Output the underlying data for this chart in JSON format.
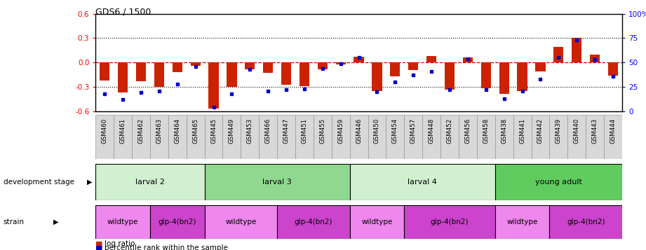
{
  "title": "GDS6 / 1500",
  "samples": [
    "GSM460",
    "GSM461",
    "GSM462",
    "GSM463",
    "GSM464",
    "GSM465",
    "GSM445",
    "GSM449",
    "GSM453",
    "GSM466",
    "GSM447",
    "GSM451",
    "GSM455",
    "GSM459",
    "GSM446",
    "GSM450",
    "GSM454",
    "GSM457",
    "GSM448",
    "GSM452",
    "GSM456",
    "GSM458",
    "GSM438",
    "GSM441",
    "GSM442",
    "GSM439",
    "GSM440",
    "GSM443",
    "GSM444"
  ],
  "log_ratio": [
    -0.22,
    -0.37,
    -0.23,
    -0.3,
    -0.12,
    -0.04,
    -0.57,
    -0.3,
    -0.08,
    -0.13,
    -0.27,
    -0.29,
    -0.08,
    -0.02,
    0.07,
    -0.35,
    -0.17,
    -0.09,
    0.08,
    -0.33,
    0.06,
    -0.32,
    -0.39,
    -0.35,
    -0.11,
    0.19,
    0.3,
    0.1,
    -0.16
  ],
  "percentile": [
    18,
    12,
    19,
    21,
    28,
    46,
    4,
    18,
    43,
    21,
    22,
    23,
    44,
    49,
    55,
    20,
    30,
    37,
    41,
    22,
    54,
    22,
    13,
    21,
    33,
    55,
    73,
    53,
    36
  ],
  "development_stages": [
    {
      "label": "larval 2",
      "start": 0,
      "end": 6,
      "color": "#d0f0d0"
    },
    {
      "label": "larval 3",
      "start": 6,
      "end": 14,
      "color": "#90d890"
    },
    {
      "label": "larval 4",
      "start": 14,
      "end": 22,
      "color": "#d0f0d0"
    },
    {
      "label": "young adult",
      "start": 22,
      "end": 29,
      "color": "#60cc60"
    }
  ],
  "strains": [
    {
      "label": "wildtype",
      "start": 0,
      "end": 3,
      "color": "#ee88ee"
    },
    {
      "label": "glp-4(bn2)",
      "start": 3,
      "end": 6,
      "color": "#cc44cc"
    },
    {
      "label": "wildtype",
      "start": 6,
      "end": 10,
      "color": "#ee88ee"
    },
    {
      "label": "glp-4(bn2)",
      "start": 10,
      "end": 14,
      "color": "#cc44cc"
    },
    {
      "label": "wildtype",
      "start": 14,
      "end": 17,
      "color": "#ee88ee"
    },
    {
      "label": "glp-4(bn2)",
      "start": 17,
      "end": 22,
      "color": "#cc44cc"
    },
    {
      "label": "wildtype",
      "start": 22,
      "end": 25,
      "color": "#ee88ee"
    },
    {
      "label": "glp-4(bn2)",
      "start": 25,
      "end": 29,
      "color": "#cc44cc"
    }
  ],
  "ylim": [
    -0.6,
    0.6
  ],
  "yticks_left": [
    -0.6,
    -0.3,
    0.0,
    0.3,
    0.6
  ],
  "yticks_right": [
    0,
    25,
    50,
    75,
    100
  ],
  "bar_color": "#cc2200",
  "dot_color": "#0000cc",
  "zero_line_color": "#cc0000",
  "tick_bg_color": "#d8d8d8"
}
